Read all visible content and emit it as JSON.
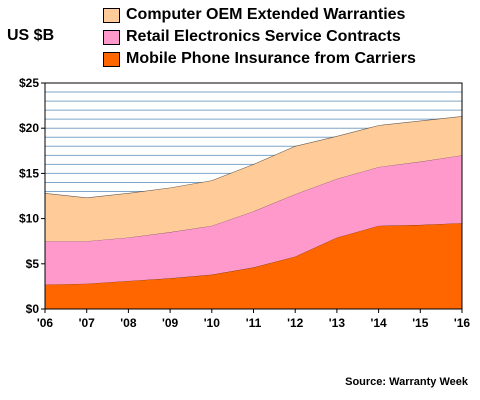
{
  "chart_data": {
    "type": "area",
    "stacked": true,
    "ylabel": "US $B",
    "source": "Source: Warranty Week",
    "x": [
      "'06",
      "'07",
      "'08",
      "'09",
      "'10",
      "'11",
      "'12",
      "'13",
      "'14",
      "'15",
      "'16"
    ],
    "ylim": [
      0,
      25
    ],
    "yticks": [
      "$0",
      "$5",
      "$10",
      "$15",
      "$20",
      "$25"
    ],
    "grid": true,
    "legend_position": "top",
    "series": [
      {
        "name": "Mobile Phone Insurance from Carriers",
        "color": "#ff6600",
        "values": [
          2.7,
          2.8,
          3.1,
          3.4,
          3.8,
          4.6,
          5.8,
          7.9,
          9.2,
          9.3,
          9.5
        ]
      },
      {
        "name": "Retail Electronics Service Contracts",
        "color": "#ff99cc",
        "values": [
          4.8,
          4.7,
          4.8,
          5.1,
          5.4,
          6.2,
          6.9,
          6.5,
          6.5,
          7.0,
          7.5
        ]
      },
      {
        "name": "Computer OEM Extended Warranties",
        "color": "#ffcc99",
        "values": [
          5.3,
          4.8,
          4.9,
          4.9,
          5.0,
          5.2,
          5.3,
          4.7,
          4.6,
          4.5,
          4.3
        ]
      }
    ],
    "legend_order": [
      2,
      1,
      0
    ]
  }
}
